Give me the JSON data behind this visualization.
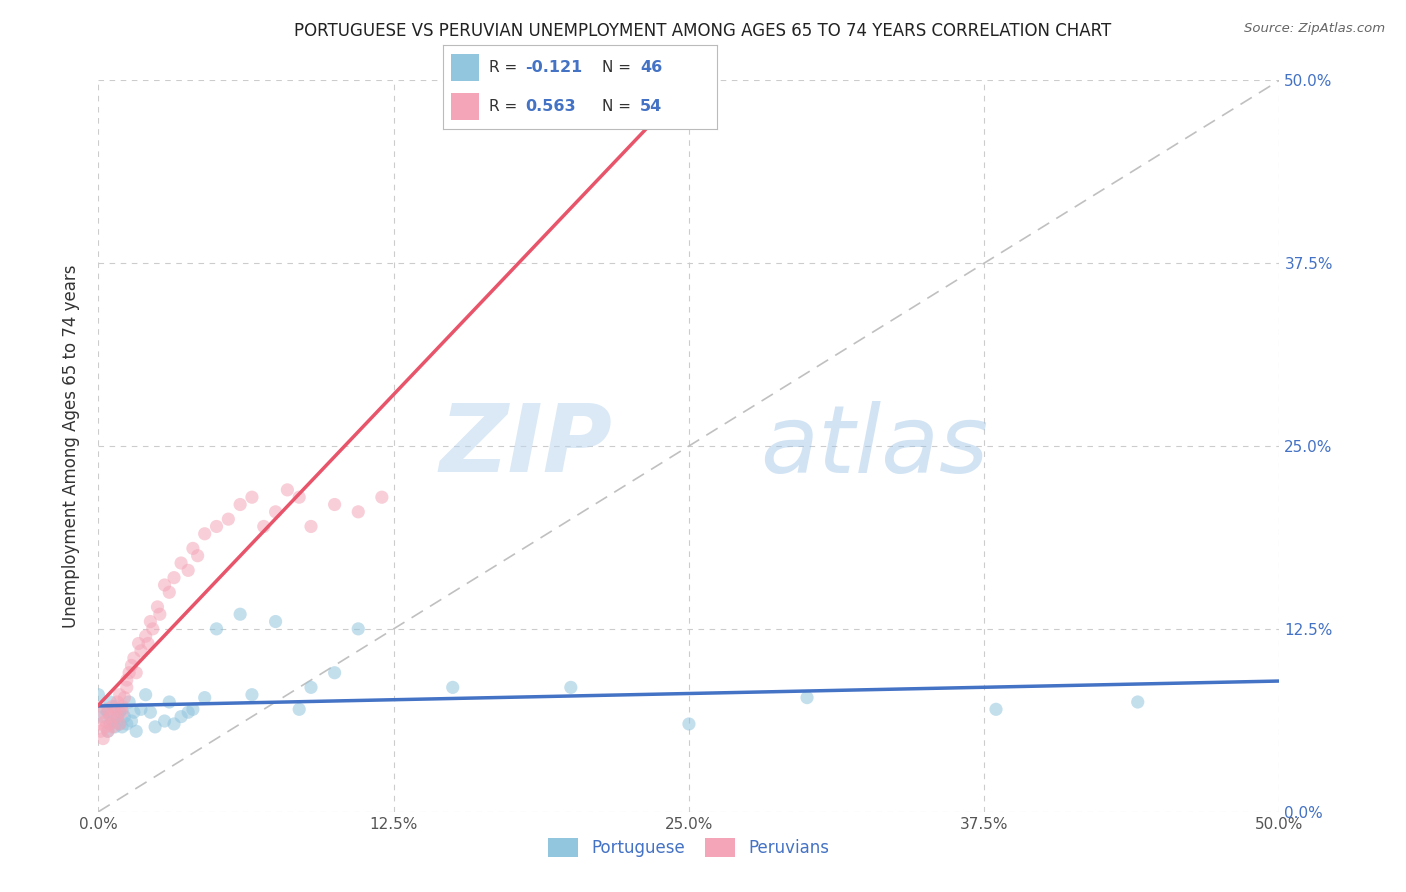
{
  "title": "PORTUGUESE VS PERUVIAN UNEMPLOYMENT AMONG AGES 65 TO 74 YEARS CORRELATION CHART",
  "source": "Source: ZipAtlas.com",
  "ylabel": "Unemployment Among Ages 65 to 74 years",
  "xlim": [
    0.0,
    0.5
  ],
  "ylim": [
    0.0,
    0.5
  ],
  "portuguese_color": "#92C5DE",
  "peruvian_color": "#F4A6B8",
  "portuguese_line_color": "#4472C4",
  "peruvian_line_color": "#E8546A",
  "diagonal_color": "#C0C0C0",
  "portuguese_R": -0.121,
  "portuguese_N": 46,
  "peruvian_R": 0.563,
  "peruvian_N": 54,
  "portuguese_scatter_x": [
    0.0,
    0.002,
    0.003,
    0.004,
    0.004,
    0.005,
    0.005,
    0.006,
    0.007,
    0.007,
    0.008,
    0.009,
    0.009,
    0.01,
    0.01,
    0.011,
    0.012,
    0.013,
    0.014,
    0.015,
    0.016,
    0.018,
    0.02,
    0.022,
    0.024,
    0.028,
    0.03,
    0.032,
    0.035,
    0.038,
    0.04,
    0.045,
    0.05,
    0.06,
    0.065,
    0.075,
    0.085,
    0.09,
    0.1,
    0.11,
    0.15,
    0.2,
    0.25,
    0.3,
    0.38,
    0.44
  ],
  "portuguese_scatter_y": [
    0.08,
    0.065,
    0.07,
    0.055,
    0.068,
    0.06,
    0.075,
    0.062,
    0.058,
    0.072,
    0.065,
    0.06,
    0.068,
    0.07,
    0.058,
    0.065,
    0.06,
    0.075,
    0.062,
    0.068,
    0.055,
    0.07,
    0.08,
    0.068,
    0.058,
    0.062,
    0.075,
    0.06,
    0.065,
    0.068,
    0.07,
    0.078,
    0.125,
    0.135,
    0.08,
    0.13,
    0.07,
    0.085,
    0.095,
    0.125,
    0.085,
    0.085,
    0.06,
    0.078,
    0.07,
    0.075
  ],
  "peruvian_scatter_x": [
    0.0,
    0.001,
    0.002,
    0.002,
    0.003,
    0.003,
    0.004,
    0.004,
    0.005,
    0.005,
    0.006,
    0.006,
    0.007,
    0.008,
    0.008,
    0.009,
    0.009,
    0.01,
    0.01,
    0.011,
    0.012,
    0.012,
    0.013,
    0.014,
    0.015,
    0.016,
    0.017,
    0.018,
    0.02,
    0.021,
    0.022,
    0.023,
    0.025,
    0.026,
    0.028,
    0.03,
    0.032,
    0.035,
    0.038,
    0.04,
    0.042,
    0.045,
    0.05,
    0.055,
    0.06,
    0.065,
    0.07,
    0.075,
    0.08,
    0.085,
    0.09,
    0.1,
    0.11,
    0.12
  ],
  "peruvian_scatter_y": [
    0.06,
    0.055,
    0.05,
    0.068,
    0.058,
    0.062,
    0.055,
    0.07,
    0.06,
    0.065,
    0.058,
    0.072,
    0.068,
    0.065,
    0.075,
    0.06,
    0.08,
    0.068,
    0.072,
    0.078,
    0.085,
    0.09,
    0.095,
    0.1,
    0.105,
    0.095,
    0.115,
    0.11,
    0.12,
    0.115,
    0.13,
    0.125,
    0.14,
    0.135,
    0.155,
    0.15,
    0.16,
    0.17,
    0.165,
    0.18,
    0.175,
    0.19,
    0.195,
    0.2,
    0.21,
    0.215,
    0.195,
    0.205,
    0.22,
    0.215,
    0.195,
    0.21,
    0.205,
    0.215
  ],
  "watermark_zip": "ZIP",
  "watermark_atlas": "atlas",
  "background_color": "#FFFFFF",
  "grid_color": "#CCCCCC",
  "marker_size": 90,
  "marker_alpha": 0.55
}
